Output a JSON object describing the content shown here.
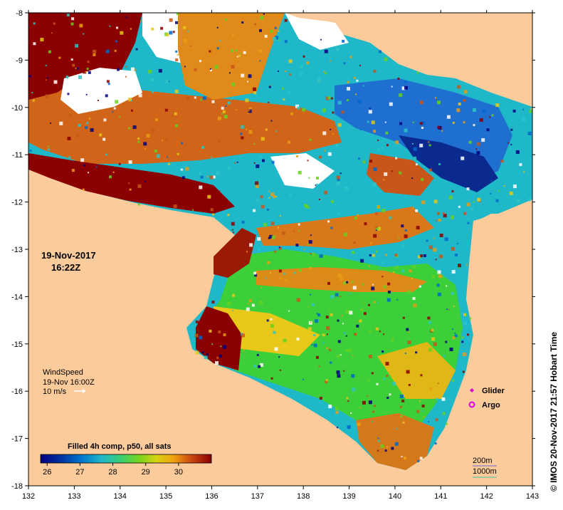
{
  "map": {
    "date": "19-Nov-2017",
    "time": "16:22Z",
    "x_ticks": [
      "132",
      "133",
      "134",
      "135",
      "136",
      "137",
      "138",
      "139",
      "140",
      "141",
      "142",
      "143"
    ],
    "y_ticks": [
      "-8",
      "-9",
      "-10",
      "-11",
      "-12",
      "-13",
      "-14",
      "-15",
      "-16",
      "-17",
      "-18"
    ],
    "side_credit": "© IMOS 20-Nov-2017 21:57 Hobart Time",
    "land_color": "#fbcb9b",
    "colors": {
      "sst_26": "#00007f",
      "sst_27": "#0066cc",
      "sst_28": "#2ec4c4",
      "sst_29": "#66d11e",
      "sst_30": "#e89c14",
      "sst_31": "#8b0000"
    }
  },
  "wind": {
    "label": "WindSpeed",
    "time": "19-Nov 16:00Z",
    "speed": "10 m/s"
  },
  "colorbar": {
    "title": "Filled 4h comp, p50, all sats",
    "ticks": [
      "26",
      "27",
      "28",
      "29",
      "30"
    ]
  },
  "legend": {
    "glider": "Glider",
    "argo": "Argo"
  },
  "scale": {
    "line1": "200m",
    "line2": "1000m"
  }
}
